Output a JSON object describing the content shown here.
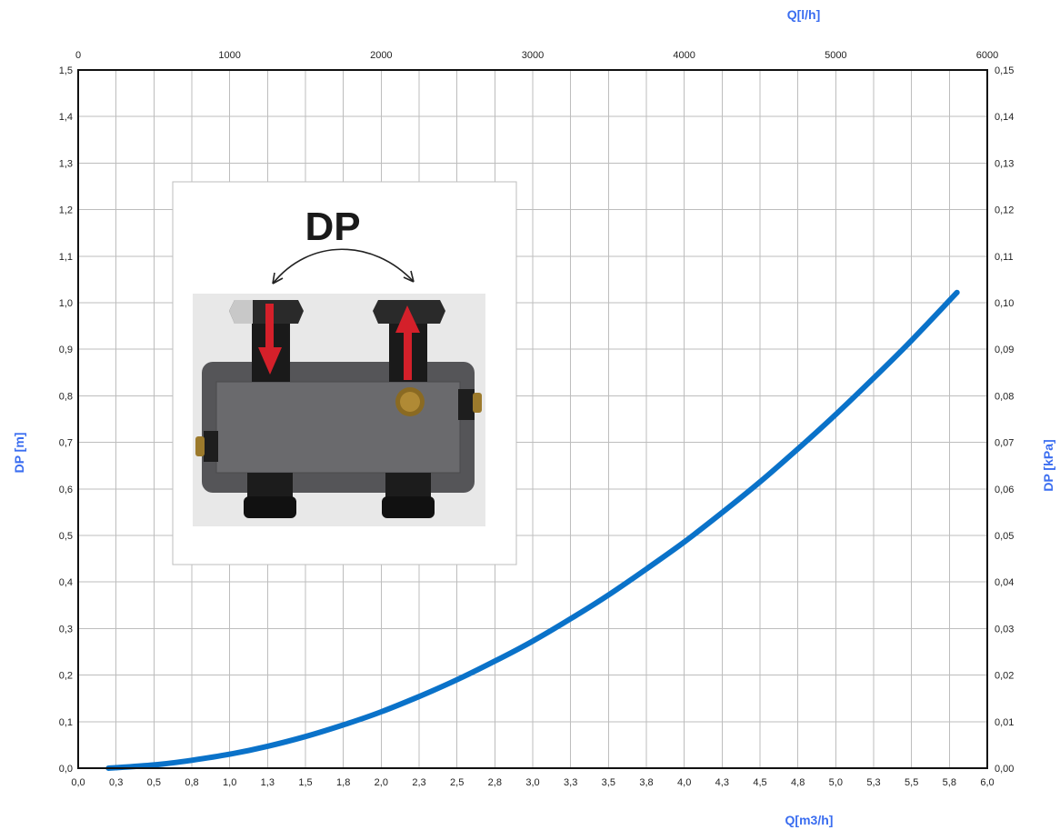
{
  "chart_data": {
    "type": "line",
    "x_label": "Q[m3/h]",
    "x2_label": "Q[l/h]",
    "y_label": "DP [m]",
    "y2_label": "DP [kPa]",
    "xlim": [
      0,
      6
    ],
    "ylim": [
      0,
      1.5
    ],
    "x2lim": [
      0,
      6000
    ],
    "y2lim": [
      0,
      0.15
    ],
    "x_ticks": [
      "0,0",
      "0,3",
      "0,5",
      "0,8",
      "1,0",
      "1,3",
      "1,5",
      "1,8",
      "2,0",
      "2,3",
      "2,5",
      "2,8",
      "3,0",
      "3,3",
      "3,5",
      "3,8",
      "4,0",
      "4,3",
      "4,5",
      "4,8",
      "5,0",
      "5,3",
      "5,5",
      "5,8",
      "6,0"
    ],
    "x2_ticks": [
      "0",
      "1000",
      "2000",
      "3000",
      "4000",
      "5000",
      "6000"
    ],
    "y_ticks": [
      "0,0",
      "0,1",
      "0,2",
      "0,3",
      "0,4",
      "0,5",
      "0,6",
      "0,7",
      "0,8",
      "0,9",
      "1,0",
      "1,1",
      "1,2",
      "1,3",
      "1,4",
      "1,5"
    ],
    "y2_ticks": [
      "0,00",
      "0,01",
      "0,02",
      "0,03",
      "0,04",
      "0,05",
      "0,06",
      "0,07",
      "0,08",
      "0,09",
      "0,10",
      "0,11",
      "0,12",
      "0,13",
      "0,14",
      "0,15"
    ],
    "grid": true,
    "series": [
      {
        "color": "#0a72c9",
        "x": [
          0.2,
          0.5,
          0.75,
          1.0,
          1.25,
          1.5,
          1.75,
          2.0,
          2.25,
          2.5,
          2.75,
          3.0,
          3.25,
          3.5,
          3.75,
          4.0,
          4.25,
          4.5,
          4.75,
          5.0,
          5.25,
          5.5,
          5.8
        ],
        "y": [
          0.0,
          0.007,
          0.017,
          0.03,
          0.047,
          0.068,
          0.093,
          0.121,
          0.154,
          0.19,
          0.23,
          0.273,
          0.321,
          0.372,
          0.428,
          0.486,
          0.549,
          0.615,
          0.686,
          0.76,
          0.838,
          0.919,
          1.022
        ]
      }
    ]
  },
  "inset": {
    "label": "DP"
  }
}
